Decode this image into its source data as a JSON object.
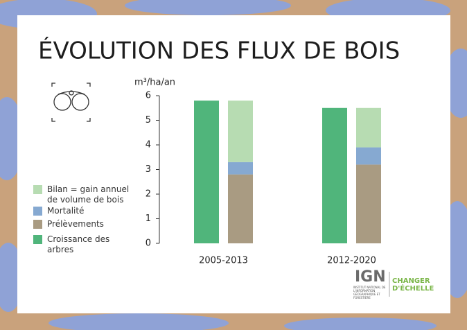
{
  "chart_data": {
    "type": "bar",
    "title": "ÉVOLUTION DES FLUX DE BOIS",
    "y_label": "m³/ha/an",
    "categories": [
      "2005-2013",
      "2012-2020"
    ],
    "series": [
      {
        "name": "Croissance des arbres",
        "color": "#50b57b",
        "stack": 0,
        "values": [
          5.8,
          5.5
        ]
      },
      {
        "name": "Prélèvements",
        "color": "#a99b82",
        "stack": 1,
        "values": [
          2.8,
          3.2
        ]
      },
      {
        "name": "Mortalité",
        "color": "#86a9d1",
        "stack": 1,
        "values": [
          0.5,
          0.7
        ]
      },
      {
        "name": "Bilan = gain annuel de volume de bois",
        "color": "#b7dcb2",
        "stack": 1,
        "values": [
          2.5,
          1.6
        ]
      }
    ],
    "ylim": [
      0,
      6
    ],
    "yticks": [
      0,
      1,
      2,
      3,
      4,
      5,
      6
    ]
  },
  "logo": {
    "acronym": "IGN",
    "institute": "INSTITUT NATIONAL DE L'INFORMATION GÉOGRAPHIQUE ET FORESTIÈRE",
    "slogan": "CHANGER D'ÉCHELLE"
  }
}
